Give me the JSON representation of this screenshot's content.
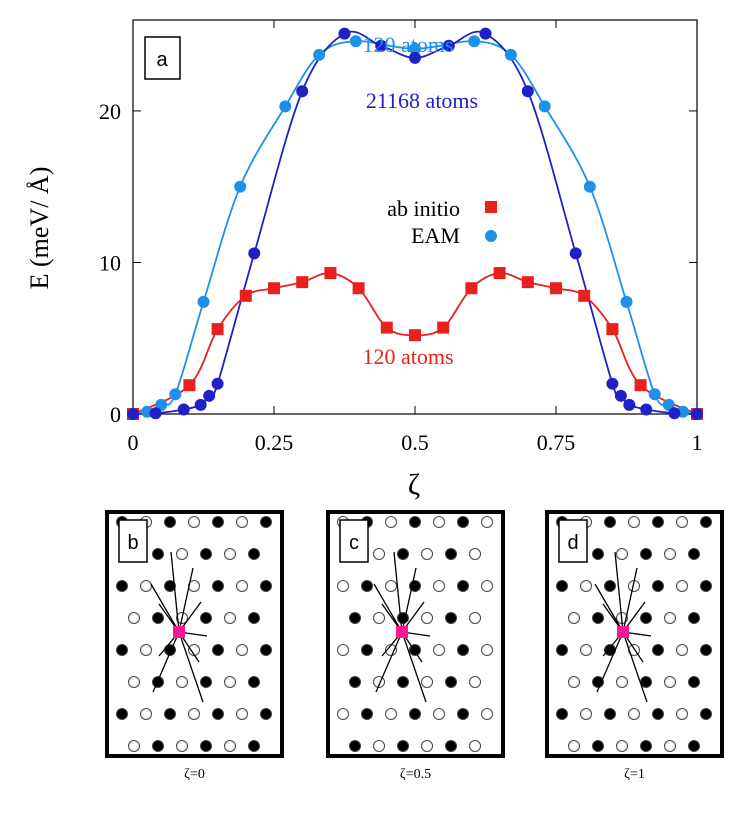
{
  "chart_data": {
    "type": "line",
    "panel_label": "a",
    "xlabel": "ζ",
    "ylabel": "E (meV/ Å)",
    "xlim": [
      0,
      1
    ],
    "ylim": [
      0,
      26
    ],
    "xticks": [
      "0",
      "0.25",
      "0.5",
      "0.75",
      "1"
    ],
    "xtick_values": [
      0,
      0.25,
      0.5,
      0.75,
      1
    ],
    "yticks": [
      "0",
      "10",
      "20"
    ],
    "ytick_values": [
      0,
      10,
      20
    ],
    "legend": {
      "position": "center-right",
      "entries": [
        "ab initio",
        "EAM"
      ]
    },
    "annotations": {
      "top_light": "120 atoms",
      "top_dark": "21168 atoms",
      "bottom": "120 atoms"
    },
    "series": [
      {
        "name": "ab initio (120 atoms)",
        "marker": "square",
        "color": "#e8201e",
        "points": [
          [
            0,
            0
          ],
          [
            0.1,
            1.9
          ],
          [
            0.15,
            5.6
          ],
          [
            0.2,
            7.8
          ],
          [
            0.25,
            8.3
          ],
          [
            0.3,
            8.7
          ],
          [
            0.35,
            9.3
          ],
          [
            0.4,
            8.3
          ],
          [
            0.45,
            5.7
          ],
          [
            0.5,
            5.2
          ],
          [
            0.55,
            5.7
          ],
          [
            0.6,
            8.3
          ],
          [
            0.65,
            9.3
          ],
          [
            0.7,
            8.7
          ],
          [
            0.75,
            8.3
          ],
          [
            0.8,
            7.8
          ],
          [
            0.85,
            5.6
          ],
          [
            0.9,
            1.9
          ],
          [
            1,
            0
          ]
        ]
      },
      {
        "name": "EAM (120 atoms)",
        "marker": "circle",
        "color": "#1e90e8",
        "points": [
          [
            0,
            0
          ],
          [
            0.025,
            0.15
          ],
          [
            0.05,
            0.6
          ],
          [
            0.075,
            1.3
          ],
          [
            0.125,
            7.4
          ],
          [
            0.19,
            15.0
          ],
          [
            0.27,
            20.3
          ],
          [
            0.33,
            23.7
          ],
          [
            0.395,
            24.6
          ],
          [
            0.5,
            24.1
          ],
          [
            0.605,
            24.6
          ],
          [
            0.67,
            23.7
          ],
          [
            0.73,
            20.3
          ],
          [
            0.81,
            15.0
          ],
          [
            0.875,
            7.4
          ],
          [
            0.925,
            1.3
          ],
          [
            0.95,
            0.6
          ],
          [
            0.975,
            0.15
          ],
          [
            1,
            0
          ]
        ]
      },
      {
        "name": "EAM (21168 atoms)",
        "marker": "circle",
        "color": "#2020c8",
        "points": [
          [
            0,
            0
          ],
          [
            0.04,
            0.05
          ],
          [
            0.09,
            0.3
          ],
          [
            0.12,
            0.6
          ],
          [
            0.135,
            1.2
          ],
          [
            0.15,
            2.0
          ],
          [
            0.215,
            10.6
          ],
          [
            0.3,
            21.3
          ],
          [
            0.375,
            25.1
          ],
          [
            0.44,
            24.3
          ],
          [
            0.5,
            23.5
          ],
          [
            0.56,
            24.3
          ],
          [
            0.625,
            25.1
          ],
          [
            0.7,
            21.3
          ],
          [
            0.785,
            10.6
          ],
          [
            0.85,
            2.0
          ],
          [
            0.865,
            1.2
          ],
          [
            0.88,
            0.6
          ],
          [
            0.91,
            0.3
          ],
          [
            0.96,
            0.05
          ],
          [
            1,
            0
          ]
        ]
      }
    ]
  },
  "lattice_panels": [
    {
      "label": "b",
      "caption": "ζ=0"
    },
    {
      "label": "c",
      "caption": "ζ=0.5"
    },
    {
      "label": "d",
      "caption": "ζ=1"
    }
  ]
}
